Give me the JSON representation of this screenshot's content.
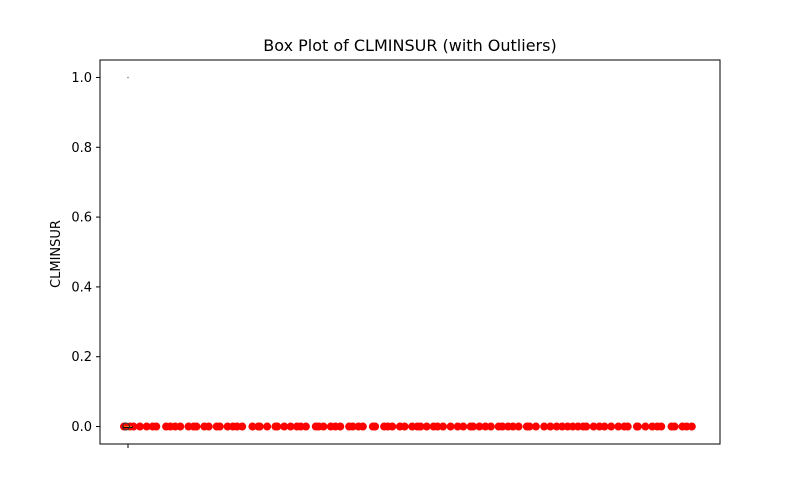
{
  "chart_data": {
    "type": "box",
    "title": "Box Plot of CLMINSUR (with Outliers)",
    "xlabel": "",
    "ylabel": "CLMINSUR",
    "ylim": [
      -0.05,
      1.05
    ],
    "yticks": [
      0.0,
      0.2,
      0.4,
      0.6,
      0.8,
      1.0
    ],
    "ytick_labels": [
      "0.0",
      "0.2",
      "0.4",
      "0.6",
      "0.8",
      "1.0"
    ],
    "grid": false,
    "box": {
      "min": 0.0,
      "q1": 0.0,
      "median": 0.0,
      "q3": 0.0,
      "max": 0.0
    },
    "flier_marker": {
      "y": 1.0,
      "color": "#808080"
    },
    "highlighted_outliers": {
      "color": "#ff0000",
      "y_values": [
        0,
        0,
        0,
        0,
        0,
        0,
        0,
        0,
        0,
        0,
        0,
        0,
        0,
        0,
        0,
        0,
        0,
        0,
        0,
        0,
        0,
        0,
        0,
        0,
        0,
        0,
        0,
        0,
        0,
        0,
        0,
        0,
        0,
        0,
        0,
        0,
        0,
        0,
        0,
        0,
        0,
        0,
        0,
        0,
        0,
        0,
        0,
        0,
        0,
        0,
        0,
        0,
        0,
        0,
        0,
        0,
        0,
        0,
        0,
        0,
        0,
        0,
        0,
        0,
        0,
        0,
        0,
        0,
        0,
        0,
        0,
        0,
        0,
        0,
        0,
        0,
        0,
        0,
        0,
        0,
        0,
        0,
        0,
        0,
        0,
        0,
        0,
        0,
        0,
        0,
        0,
        0,
        0,
        0,
        0,
        0,
        0,
        0,
        0,
        0
      ]
    },
    "colors": {
      "box": "#000000",
      "median": "#ff7f0e",
      "outlier": "#ff0000",
      "flier": "#808080"
    }
  }
}
